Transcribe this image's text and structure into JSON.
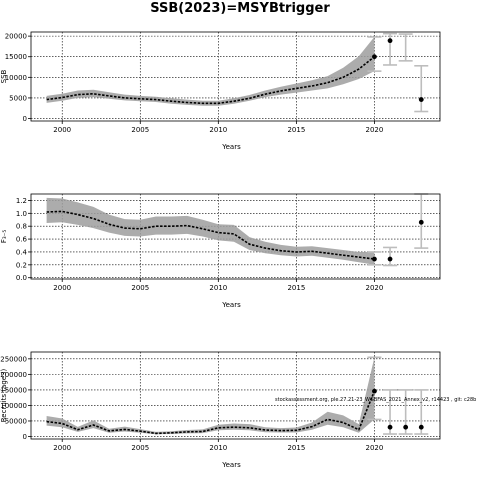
{
  "figure": {
    "title": "SSB(2023)=MSYBtrigger",
    "annotation": "stockassessment.org, ple.27.21-23_WGBFAS_2021_Annex_v2, r14423 , git: c28b"
  },
  "chart_data": [
    {
      "type": "line",
      "ylabel": "SSB",
      "xlabel": "Years",
      "xlim": [
        1998,
        2024.2
      ],
      "ylim": [
        -600,
        21000
      ],
      "xticks": [
        2000,
        2005,
        2010,
        2015,
        2020
      ],
      "yticks": [
        0,
        5000,
        10000,
        15000,
        20000
      ],
      "grid": true,
      "series": [
        {
          "x": [
            1999,
            2000,
            2001,
            2002,
            2003,
            2004,
            2005,
            2006,
            2007,
            2008,
            2009,
            2010,
            2011,
            2012,
            2013,
            2014,
            2015,
            2016,
            2017,
            2018,
            2019,
            2020
          ],
          "values": [
            4600,
            5100,
            5800,
            6000,
            5500,
            5000,
            4800,
            4600,
            4200,
            3900,
            3700,
            3700,
            4200,
            4900,
            5900,
            6700,
            7300,
            7900,
            8700,
            10000,
            12000,
            15000
          ],
          "lower": [
            3800,
            4300,
            5000,
            5200,
            4800,
            4400,
            4200,
            4000,
            3600,
            3300,
            3100,
            3100,
            3600,
            4300,
            5200,
            5800,
            6300,
            6800,
            7300,
            8300,
            9600,
            11500
          ],
          "upper": [
            5500,
            6000,
            6800,
            7000,
            6400,
            5800,
            5500,
            5300,
            4900,
            4600,
            4300,
            4300,
            4900,
            5700,
            6800,
            7700,
            8500,
            9300,
            10300,
            12300,
            15100,
            19800
          ]
        }
      ],
      "forecast": {
        "x": [
          2021,
          2022,
          2023
        ],
        "values": [
          18900,
          null,
          4600
        ],
        "lower": [
          13000,
          14000,
          1700
        ],
        "upper": [
          20600,
          20500,
          12800
        ]
      }
    },
    {
      "type": "line",
      "ylabel": "F₃₋₅",
      "xlabel": "Years",
      "xlim": [
        1998,
        2024.2
      ],
      "ylim": [
        -0.02,
        1.3
      ],
      "xticks": [
        2000,
        2005,
        2010,
        2015,
        2020
      ],
      "yticks": [
        0.0,
        0.2,
        0.4,
        0.6,
        0.8,
        1.0,
        1.2
      ],
      "grid": true,
      "series": [
        {
          "x": [
            1999,
            2000,
            2001,
            2002,
            2003,
            2004,
            2005,
            2006,
            2007,
            2008,
            2009,
            2010,
            2011,
            2012,
            2013,
            2014,
            2015,
            2016,
            2017,
            2018,
            2019,
            2020
          ],
          "values": [
            1.02,
            1.03,
            0.98,
            0.92,
            0.83,
            0.77,
            0.76,
            0.8,
            0.8,
            0.81,
            0.76,
            0.7,
            0.68,
            0.52,
            0.46,
            0.42,
            0.4,
            0.41,
            0.38,
            0.35,
            0.32,
            0.29
          ],
          "lower": [
            0.85,
            0.86,
            0.82,
            0.77,
            0.7,
            0.65,
            0.64,
            0.67,
            0.67,
            0.68,
            0.64,
            0.58,
            0.56,
            0.43,
            0.38,
            0.35,
            0.33,
            0.34,
            0.31,
            0.28,
            0.24,
            0.2
          ],
          "upper": [
            1.24,
            1.23,
            1.17,
            1.1,
            0.98,
            0.91,
            0.9,
            0.95,
            0.95,
            0.96,
            0.9,
            0.83,
            0.82,
            0.63,
            0.56,
            0.51,
            0.48,
            0.49,
            0.46,
            0.43,
            0.4,
            0.4
          ]
        }
      ],
      "forecast": {
        "x": [
          2021,
          2023
        ],
        "values": [
          0.29,
          0.86
        ],
        "lower": [
          0.19,
          0.46
        ],
        "upper": [
          0.47,
          1.3
        ]
      }
    },
    {
      "type": "line",
      "ylabel": "Recruits (age3)",
      "xlabel": "Years",
      "xlim": [
        1998,
        2024.2
      ],
      "ylim": [
        -8000,
        272000
      ],
      "xticks": [
        2000,
        2005,
        2010,
        2015,
        2020
      ],
      "yticks": [
        0,
        50000,
        100000,
        150000,
        200000,
        250000
      ],
      "grid": true,
      "series": [
        {
          "x": [
            1999,
            2000,
            2001,
            2002,
            2003,
            2004,
            2005,
            2006,
            2007,
            2008,
            2009,
            2010,
            2011,
            2012,
            2013,
            2014,
            2015,
            2016,
            2017,
            2018,
            2019,
            2020
          ],
          "values": [
            48000,
            42000,
            22000,
            37000,
            18000,
            23000,
            17000,
            10000,
            12000,
            15000,
            16000,
            28000,
            30000,
            28000,
            21000,
            19000,
            20000,
            32000,
            55000,
            45000,
            22000,
            146000
          ],
          "lower": [
            35000,
            30000,
            15000,
            27000,
            12000,
            16000,
            12000,
            7000,
            8000,
            10000,
            11000,
            20000,
            22000,
            20000,
            14000,
            13000,
            13000,
            22000,
            38000,
            30000,
            12000,
            55000
          ],
          "upper": [
            66000,
            58000,
            31000,
            52000,
            25000,
            32000,
            24000,
            15000,
            17000,
            21000,
            23000,
            38000,
            42000,
            40000,
            30000,
            27000,
            29000,
            45000,
            80000,
            68000,
            40000,
            255000
          ]
        }
      ],
      "forecast": {
        "x": [
          2021,
          2022,
          2023
        ],
        "values": [
          30000,
          30000,
          30000
        ],
        "lower": [
          8000,
          8000,
          8000
        ],
        "upper": [
          150000,
          150000,
          150000
        ]
      }
    }
  ]
}
